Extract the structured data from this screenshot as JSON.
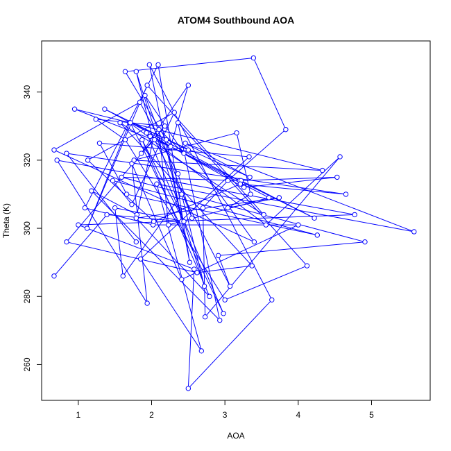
{
  "chart_data": {
    "type": "line",
    "title": "ATOM4 Southbound AOA",
    "xlabel": "AOA",
    "ylabel": "Theta (K)",
    "xlim": [
      0.5,
      5.8
    ],
    "ylim": [
      249.5,
      355
    ],
    "xticks": [
      1,
      2,
      3,
      4,
      5
    ],
    "yticks": [
      260,
      280,
      300,
      320,
      340
    ],
    "grid": false,
    "markers": "open-circle",
    "color": "#0000ff",
    "x": [
      0.67,
      1.39,
      2.41,
      1.97,
      3.64,
      2.5,
      2.58,
      1.0,
      4.77,
      0.71,
      1.94,
      1.73,
      2.41,
      4.0,
      2.02,
      1.09,
      2.09,
      2.52,
      2.2,
      1.64,
      3.39,
      3.83,
      3.04,
      2.7,
      2.73,
      4.57,
      3.56,
      1.7,
      1.12,
      1.94,
      3.53,
      1.57,
      3.37,
      2.62,
      0.84,
      2.18,
      1.24,
      1.64,
      3.0,
      4.12,
      2.36,
      2.93,
      1.18,
      1.8,
      2.02,
      1.79,
      2.72,
      2.41,
      1.61,
      1.5,
      2.44,
      1.87,
      2.79,
      1.79,
      3.74,
      3.04,
      3.35,
      3.16,
      1.76,
      4.33,
      0.95,
      2.26,
      2.5,
      1.86,
      2.04,
      3.07,
      2.91,
      4.91,
      1.59,
      3.2,
      1.36,
      2.5,
      3.4,
      0.67,
      1.84,
      2.36,
      2.55,
      1.91,
      2.44,
      2.1,
      2.23,
      3.6,
      1.98,
      4.22,
      3.22,
      4.53,
      3.26,
      1.93,
      2.98,
      1.71,
      3.34,
      2.46,
      5.58,
      2.07,
      2.68,
      1.85,
      3.33,
      1.29,
      1.66,
      4.26,
      1.47,
      1.73,
      2.31,
      1.13,
      2.03,
      3.21,
      4.65,
      0.84,
      1.79
    ],
    "y": [
      286,
      304,
      302,
      348,
      279,
      253,
      288,
      301,
      304,
      320,
      278,
      319,
      285,
      301,
      301,
      306,
      348,
      290,
      326,
      346,
      350,
      329,
      314,
      306,
      274,
      321,
      301,
      331,
      300,
      342,
      304,
      331,
      289,
      287,
      296,
      330,
      332,
      326,
      279,
      289,
      331,
      273,
      311,
      304,
      326,
      346,
      283,
      310,
      286,
      306,
      302,
      326,
      280,
      303,
      309,
      306,
      310,
      328,
      320,
      317,
      335,
      324,
      342,
      322,
      326,
      283,
      292,
      296,
      315,
      314,
      335,
      323,
      296,
      323,
      337,
      316,
      303,
      339,
      322,
      329,
      301,
      309,
      327,
      303,
      314,
      315,
      312,
      328,
      275,
      331,
      315,
      325,
      299,
      313,
      264,
      291,
      321,
      325,
      310,
      298,
      314,
      307,
      334,
      320,
      302,
      313,
      310,
      322,
      296
    ]
  }
}
